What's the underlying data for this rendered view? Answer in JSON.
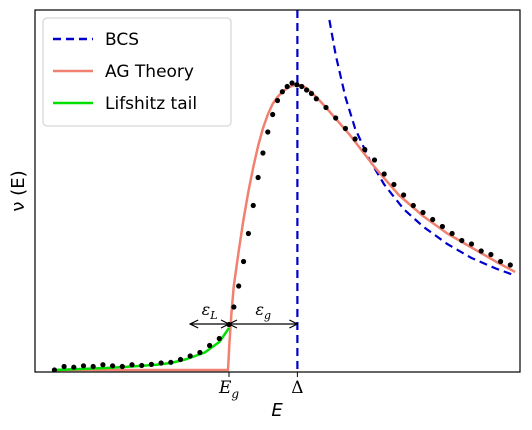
{
  "chart_data": {
    "type": "line",
    "title": "",
    "xlabel": "E",
    "ylabel": "ν (E)",
    "xlim": [
      0,
      1
    ],
    "ylim": [
      0,
      1
    ],
    "grid": false,
    "legend_placement": "top-left",
    "x_ticks": [
      {
        "value": 0.4,
        "label": "E_g",
        "main": "E",
        "sub": "g"
      },
      {
        "value": 0.541,
        "label": "Δ",
        "main": "Δ",
        "sub": ""
      }
    ],
    "annotations": [
      {
        "text": "ε_L",
        "main": "ε",
        "sub": "L",
        "from": 0.32,
        "to": 0.4
      },
      {
        "text": "ε_g",
        "main": "ε",
        "sub": "g",
        "from": 0.4,
        "to": 0.541
      }
    ],
    "series": [
      {
        "name": "BCS",
        "style": "dashed",
        "color": "#0000cc",
        "vertical_line_x": 0.541,
        "x": [
          0.607,
          0.62,
          0.64,
          0.66,
          0.69,
          0.72,
          0.76,
          0.8,
          0.85,
          0.9,
          0.95,
          0.99
        ],
        "y": [
          1.0,
          0.9,
          0.78,
          0.69,
          0.6,
          0.53,
          0.46,
          0.41,
          0.36,
          0.32,
          0.29,
          0.27
        ]
      },
      {
        "name": "AG Theory",
        "style": "solid",
        "color": "#f08070",
        "x": [
          0.04,
          0.398,
          0.401,
          0.405,
          0.41,
          0.42,
          0.43,
          0.44,
          0.45,
          0.46,
          0.47,
          0.48,
          0.49,
          0.5,
          0.51,
          0.52,
          0.53,
          0.54,
          0.55,
          0.56,
          0.58,
          0.6,
          0.65,
          0.7,
          0.75,
          0.8,
          0.85,
          0.9,
          0.95,
          0.99
        ],
        "y": [
          0.0,
          0.0,
          0.08,
          0.16,
          0.24,
          0.34,
          0.43,
          0.51,
          0.58,
          0.64,
          0.69,
          0.73,
          0.76,
          0.78,
          0.795,
          0.805,
          0.812,
          0.815,
          0.813,
          0.805,
          0.78,
          0.75,
          0.67,
          0.58,
          0.5,
          0.44,
          0.39,
          0.35,
          0.31,
          0.28
        ]
      },
      {
        "name": "Lifshitz tail",
        "style": "solid",
        "color": "#00e000",
        "x": [
          0.04,
          0.1,
          0.15,
          0.2,
          0.25,
          0.28,
          0.31,
          0.33,
          0.35,
          0.36,
          0.37,
          0.38,
          0.39,
          0.4
        ],
        "y": [
          0.0,
          0.003,
          0.006,
          0.01,
          0.015,
          0.02,
          0.03,
          0.04,
          0.05,
          0.06,
          0.07,
          0.08,
          0.1,
          0.12
        ]
      },
      {
        "name": "",
        "style": "markers",
        "color": "#000000",
        "x": [
          0.04,
          0.06,
          0.08,
          0.1,
          0.12,
          0.14,
          0.16,
          0.18,
          0.2,
          0.22,
          0.24,
          0.26,
          0.28,
          0.3,
          0.32,
          0.34,
          0.36,
          0.38,
          0.4,
          0.41,
          0.42,
          0.43,
          0.44,
          0.45,
          0.46,
          0.47,
          0.48,
          0.49,
          0.5,
          0.51,
          0.52,
          0.53,
          0.54,
          0.55,
          0.56,
          0.57,
          0.58,
          0.6,
          0.62,
          0.64,
          0.66,
          0.68,
          0.7,
          0.72,
          0.74,
          0.76,
          0.78,
          0.8,
          0.82,
          0.84,
          0.86,
          0.88,
          0.9,
          0.92,
          0.94,
          0.96,
          0.98
        ],
        "y": [
          0.0,
          0.01,
          0.008,
          0.012,
          0.01,
          0.015,
          0.012,
          0.01,
          0.015,
          0.013,
          0.016,
          0.02,
          0.022,
          0.03,
          0.04,
          0.05,
          0.07,
          0.09,
          0.13,
          0.18,
          0.24,
          0.31,
          0.39,
          0.47,
          0.55,
          0.62,
          0.68,
          0.73,
          0.77,
          0.795,
          0.81,
          0.82,
          0.815,
          0.81,
          0.8,
          0.79,
          0.775,
          0.75,
          0.72,
          0.69,
          0.66,
          0.63,
          0.6,
          0.56,
          0.53,
          0.5,
          0.47,
          0.45,
          0.43,
          0.41,
          0.39,
          0.37,
          0.36,
          0.34,
          0.33,
          0.31,
          0.3
        ]
      }
    ]
  }
}
